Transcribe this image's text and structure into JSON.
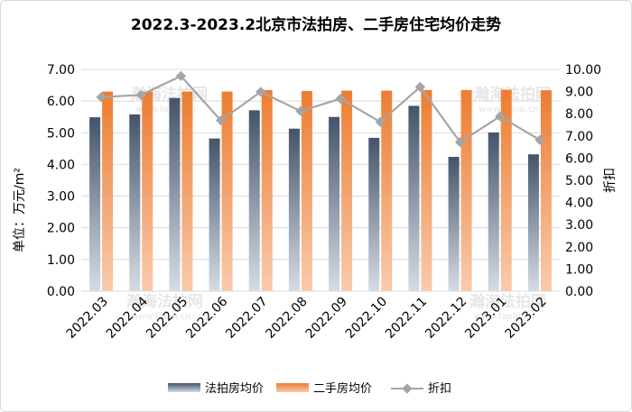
{
  "chart_data": {
    "type": "bar",
    "title": "2022.3-2023.2北京市法拍房、二手房住宅均价走势",
    "ylabel_left": "单位：万元/m²",
    "ylabel_right": "折扣",
    "categories": [
      "2022.03",
      "2022.04",
      "2022.05",
      "2022.06",
      "2022.07",
      "2022.08",
      "2022.09",
      "2022.10",
      "2022.11",
      "2022.12",
      "2023.01",
      "2023.02"
    ],
    "series": [
      {
        "name": "法拍房均价",
        "type": "bar",
        "axis": "left",
        "color": "#44546a",
        "values": [
          5.49,
          5.58,
          6.1,
          4.82,
          5.71,
          5.13,
          5.5,
          4.84,
          5.85,
          4.24,
          5.01,
          4.32
        ]
      },
      {
        "name": "二手房均价",
        "type": "bar",
        "axis": "left",
        "color": "#ed7d31",
        "values": [
          6.3,
          6.3,
          6.3,
          6.3,
          6.35,
          6.32,
          6.33,
          6.33,
          6.35,
          6.35,
          6.36,
          6.34
        ]
      },
      {
        "name": "折扣",
        "type": "line",
        "axis": "right",
        "color": "#a5a5a5",
        "values": [
          8.75,
          8.85,
          9.7,
          7.7,
          8.99,
          8.12,
          8.68,
          7.63,
          9.21,
          6.72,
          7.88,
          6.82
        ]
      }
    ],
    "left_axis": {
      "min": 0,
      "max": 7,
      "step": 1,
      "tick_labels": [
        "0.00",
        "1.00",
        "2.00",
        "3.00",
        "4.00",
        "5.00",
        "6.00",
        "7.00"
      ]
    },
    "right_axis": {
      "min": 0,
      "max": 10,
      "step": 1,
      "tick_labels": [
        "0.00",
        "1.00",
        "2.00",
        "3.00",
        "4.00",
        "5.00",
        "6.00",
        "7.00",
        "8.00",
        "9.00",
        "10.00"
      ]
    },
    "grid": true,
    "legend_position": "bottom",
    "watermark": {
      "text": "瀚海法拍网",
      "url": "www.fapai.cn"
    }
  }
}
